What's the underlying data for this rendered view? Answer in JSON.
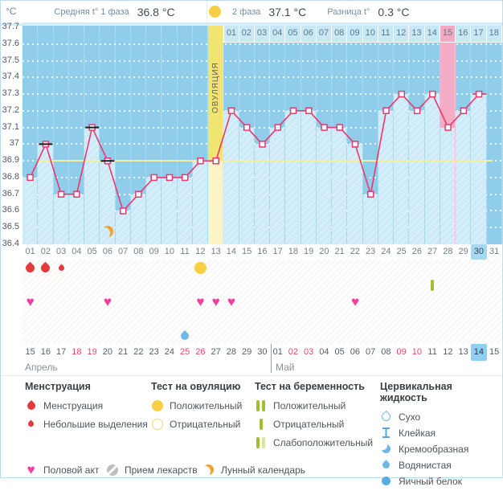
{
  "header": {
    "unit": "°C",
    "phase1_label": "Средняя t° 1 фаза",
    "phase1_value": "36.8 °C",
    "phase2_label": "2 фаза",
    "phase2_value": "37.1 °C",
    "diff_label": "Разница t°",
    "diff_value": "0.3 °C"
  },
  "chart_data": {
    "type": "line",
    "ylabel": "°C",
    "ylim": [
      36.4,
      37.7
    ],
    "ytick_step": 0.1,
    "grid": true,
    "cycle_days": [
      "01",
      "02",
      "03",
      "04",
      "05",
      "06",
      "07",
      "08",
      "09",
      "10",
      "11",
      "12",
      "13",
      "14",
      "15",
      "16",
      "17",
      "18",
      "19",
      "20",
      "21",
      "22",
      "23",
      "24",
      "25",
      "26",
      "27",
      "28",
      "29",
      "30",
      "31"
    ],
    "temperatures": [
      36.8,
      37.0,
      36.7,
      36.7,
      37.1,
      36.9,
      36.6,
      36.7,
      36.8,
      36.8,
      36.8,
      36.9,
      36.9,
      37.2,
      37.1,
      37.0,
      37.1,
      37.2,
      37.2,
      37.1,
      37.1,
      37.0,
      36.7,
      37.2,
      37.3,
      37.2,
      37.3,
      37.1,
      37.2,
      37.3,
      null
    ],
    "flagged_days": [
      2,
      5,
      6
    ],
    "last_point_dash_day": 30,
    "coverline_temp": 36.9,
    "ovulation_day": 13,
    "ovulation_label": "ОВУЛЯЦИЯ",
    "pink_highlight_day": 28,
    "today_day": 30,
    "moon_day": 6,
    "phase2_numbers": [
      "01",
      "02",
      "03",
      "04",
      "05",
      "06",
      "07",
      "08",
      "09",
      "10",
      "11",
      "12",
      "13",
      "14",
      "15",
      "16",
      "17",
      "18"
    ],
    "phase2_pink_number": "15"
  },
  "events": {
    "menstruation": [
      {
        "day": 1,
        "size": "large"
      },
      {
        "day": 2,
        "size": "large"
      },
      {
        "day": 3,
        "size": "small"
      }
    ],
    "ovulation_test_positive": [
      12
    ],
    "pregnancy_test_negative": [
      27
    ],
    "intercourse": [
      1,
      6,
      12,
      13,
      14,
      22
    ],
    "cervical_watery": [
      11
    ]
  },
  "calendar": {
    "month1_label": "Апрель",
    "month2_label": "Май",
    "month1_days": [
      "15",
      "16",
      "17",
      "18",
      "19",
      "20",
      "21",
      "22",
      "23",
      "24",
      "25",
      "26",
      "27",
      "28",
      "29",
      "30"
    ],
    "month2_days": [
      "01",
      "02",
      "03",
      "04",
      "05",
      "06",
      "07",
      "08",
      "09",
      "10",
      "11",
      "12",
      "13",
      "14",
      "15"
    ],
    "weekend_days_month1": [
      "18",
      "19",
      "25",
      "26"
    ],
    "weekend_days_month2": [
      "02",
      "03",
      "09",
      "10"
    ],
    "today_month2": "14"
  },
  "legend": {
    "groups": [
      {
        "title": "Менструация",
        "items": [
          {
            "icon": "drop-lg",
            "label": "Менструация"
          },
          {
            "icon": "drop-sm",
            "label": "Небольшие выделения"
          }
        ]
      },
      {
        "title": "Тест на овуляцию",
        "items": [
          {
            "icon": "circle-filled-yellow",
            "label": "Положительный"
          },
          {
            "icon": "circle-outline-yellow",
            "label": "Отрицательный"
          }
        ]
      },
      {
        "title": "Тест на беременность",
        "items": [
          {
            "icon": "bars-two-green",
            "label": "Положительный"
          },
          {
            "icon": "bar-one-green",
            "label": "Отрицательный"
          },
          {
            "icon": "bars-green-pale",
            "label": "Слабоположительный"
          }
        ]
      },
      {
        "title": "Цервикальная жидкость",
        "items": [
          {
            "icon": "drop-outline-blue",
            "label": "Сухо"
          },
          {
            "icon": "ibeam-blue",
            "label": "Клейкая"
          },
          {
            "icon": "drop-half-blue",
            "label": "Кремообразная"
          },
          {
            "icon": "drop-filled-blue",
            "label": "Водянистая"
          },
          {
            "icon": "circle-filled-blue",
            "label": "Яичный белок"
          }
        ]
      }
    ],
    "footer_items": [
      {
        "icon": "heart-pink",
        "label": "Половой акт"
      },
      {
        "icon": "pill-gray",
        "label": "Прием лекарств"
      },
      {
        "icon": "moon-orange",
        "label": "Лунный календарь"
      }
    ]
  },
  "colors": {
    "plot_bg": "#8fcdeb",
    "bar": "#cdeaf8",
    "ovulation_column": "#f2e472",
    "ovulation_bar": "#faf5c6",
    "pink_column": "#f5adc6",
    "line": "#e8386d",
    "coverline": "#f4f096",
    "menstruation": "#e23b3b",
    "intercourse": "#f23f9e",
    "ovulation_test": "#f8ce45",
    "pregnancy_test": "#9cc030",
    "cervical_fluid": "#6fb9e6",
    "moon": "#f5a12c",
    "today_highlight": "#a5d8f3",
    "weekend_date": "#e84a6f"
  }
}
